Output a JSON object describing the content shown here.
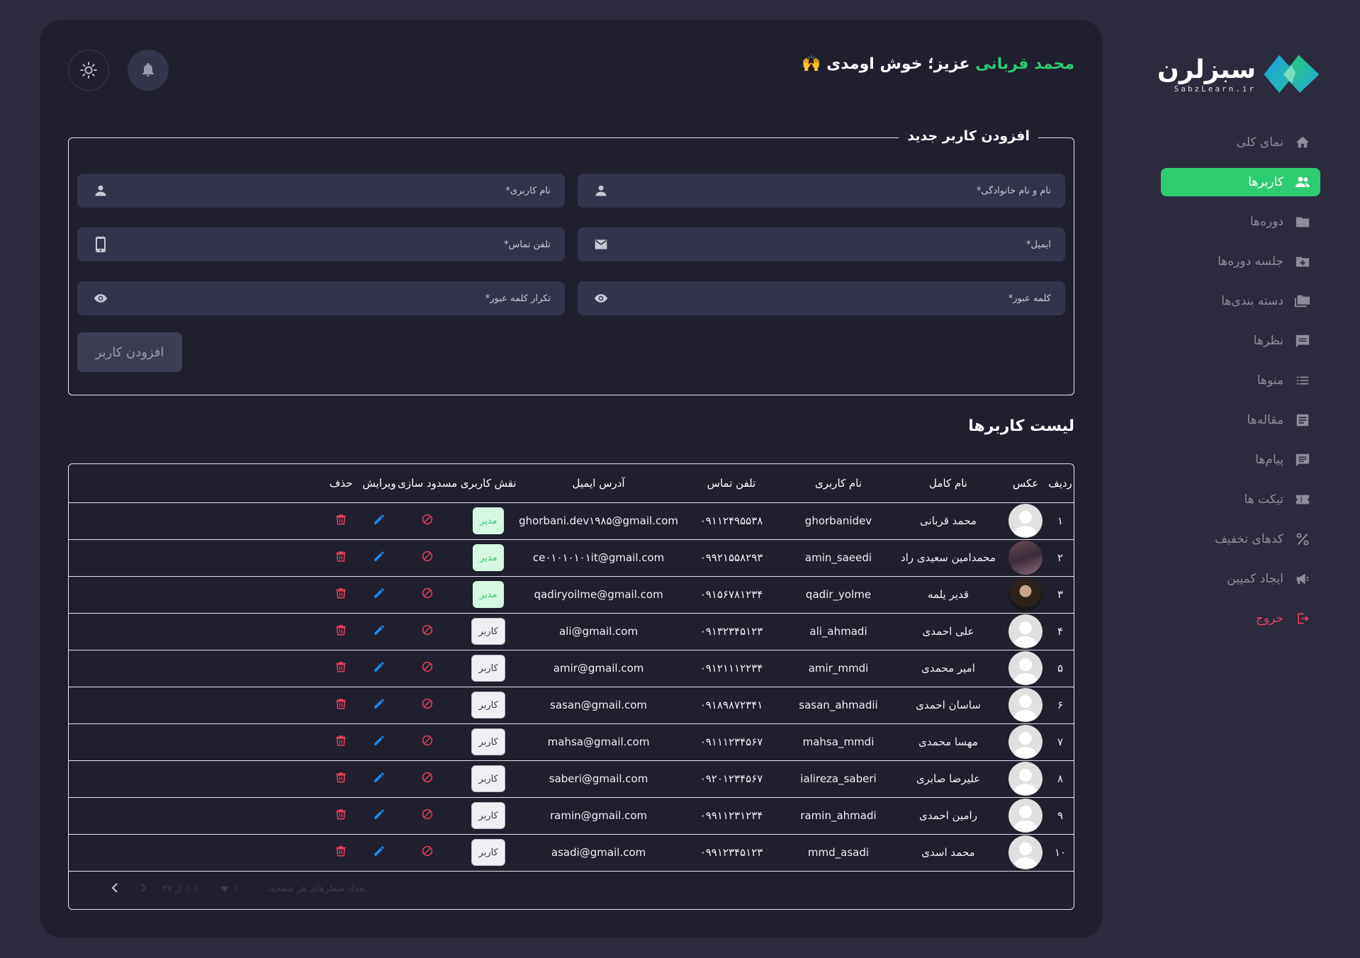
{
  "brand": {
    "name": "سبزلرن",
    "domain": "SabzLearn.ir"
  },
  "sidebar": {
    "items": [
      {
        "label": "نمای کلی",
        "icon": "home-icon",
        "active": false
      },
      {
        "label": "کاربرها",
        "icon": "users-icon",
        "active": true
      },
      {
        "label": "دوره‌ها",
        "icon": "folder-icon",
        "active": false
      },
      {
        "label": "جلسه دوره‌ها",
        "icon": "folder-plus-icon",
        "active": false
      },
      {
        "label": "دسته بندی‌ها",
        "icon": "folders-icon",
        "active": false
      },
      {
        "label": "نظرها",
        "icon": "comment-icon",
        "active": false
      },
      {
        "label": "منوها",
        "icon": "list-icon",
        "active": false
      },
      {
        "label": "مقاله‌ها",
        "icon": "article-icon",
        "active": false
      },
      {
        "label": "پیام‌ها",
        "icon": "message-icon",
        "active": false
      },
      {
        "label": "تیکت ها",
        "icon": "ticket-icon",
        "active": false
      },
      {
        "label": "کدهای تخفیف",
        "icon": "percent-icon",
        "active": false
      },
      {
        "label": "ایجاد کمپین",
        "icon": "megaphone-icon",
        "active": false
      },
      {
        "label": "خروج",
        "icon": "logout-icon",
        "active": false
      }
    ]
  },
  "header": {
    "name": "محمد قربانی",
    "greeting_rest": "عزیز؛ خوش اومدی 🙌"
  },
  "form": {
    "legend": "افزودن کاربر جدید",
    "fullname_placeholder": "نام و نام خانوادگی*",
    "username_placeholder": "نام کاربری*",
    "email_placeholder": "ایمیل*",
    "phone_placeholder": "تلفن تماس*",
    "password_placeholder": "کلمه عبور*",
    "confirm_placeholder": "تکرار کلمه عبور*",
    "submit_label": "افزودن کاربر"
  },
  "users_table": {
    "title": "لیست کاربرها",
    "columns": [
      "ردیف",
      "عکس",
      "نام کامل",
      "نام کاربری",
      "تلفن تماس",
      "آدرس ایمیل",
      "نقش کاربری",
      "مسدود سازی",
      "ویرایش",
      "حذف"
    ],
    "rows": [
      {
        "idx": "۱",
        "avatar": "default",
        "name": "محمد قربانی",
        "username": "ghorbanidev",
        "phone": "۰۹۱۱۲۴۹۵۵۳۸",
        "email": "ghorbani.dev۱۹۸۵@gmail.com",
        "role": "مدیر",
        "role_type": "admin"
      },
      {
        "idx": "۲",
        "avatar": "photo1",
        "name": "محمدامین سعیدی راد",
        "username": "amin_saeedi",
        "phone": "۰۹۹۲۱۵۵۸۲۹۳",
        "email": "ce۰۱۰۱۰۱۰۱it@gmail.com",
        "role": "مدیر",
        "role_type": "admin"
      },
      {
        "idx": "۳",
        "avatar": "photo2",
        "name": "قدیر یلمه",
        "username": "qadir_yolme",
        "phone": "۰۹۱۵۶۷۸۱۲۳۴",
        "email": "qadiryoilme@gmail.com",
        "role": "مدیر",
        "role_type": "admin"
      },
      {
        "idx": "۴",
        "avatar": "default",
        "name": "علی احمدی",
        "username": "ali_ahmadi",
        "phone": "۰۹۱۳۲۳۴۵۱۲۳",
        "email": "ali@gmail.com",
        "role": "کاربر",
        "role_type": "user"
      },
      {
        "idx": "۵",
        "avatar": "default",
        "name": "امیر محمدی",
        "username": "amir_mmdi",
        "phone": "۰۹۱۲۱۱۱۲۲۳۴",
        "email": "amir@gmail.com",
        "role": "کاربر",
        "role_type": "user"
      },
      {
        "idx": "۶",
        "avatar": "default",
        "name": "ساسان احمدی",
        "username": "sasan_ahmadii",
        "phone": "۰۹۱۸۹۸۷۲۳۴۱",
        "email": "sasan@gmail.com",
        "role": "کاربر",
        "role_type": "user"
      },
      {
        "idx": "۷",
        "avatar": "default",
        "name": "مهسا محمدی",
        "username": "mahsa_mmdi",
        "phone": "۰۹۱۱۱۲۳۴۵۶۷",
        "email": "mahsa@gmail.com",
        "role": "کاربر",
        "role_type": "user"
      },
      {
        "idx": "۸",
        "avatar": "default",
        "name": "علیرضا صابری",
        "username": "ialireza_saberi",
        "phone": "۰۹۲۰۱۲۳۴۵۶۷",
        "email": "saberi@gmail.com",
        "role": "کاربر",
        "role_type": "user"
      },
      {
        "idx": "۹",
        "avatar": "default",
        "name": "رامین احمدی",
        "username": "ramin_ahmadi",
        "phone": "۰۹۹۱۱۲۳۱۲۳۴",
        "email": "ramin@gmail.com",
        "role": "کاربر",
        "role_type": "user"
      },
      {
        "idx": "۱۰",
        "avatar": "default",
        "name": "محمد اسدی",
        "username": "mmd_asadi",
        "phone": "۰۹۹۱۲۳۴۵۱۲۳",
        "email": "asadi@gmail.com",
        "role": "کاربر",
        "role_type": "user"
      }
    ]
  },
  "pagination": {
    "rows_label": "تعداد سطرهای هر صفحه:",
    "rows_value": "۱۰",
    "range": "۱-۱۰ از ۲۷"
  },
  "colors": {
    "accent": "#2ecc71",
    "background": "#2b2b3d",
    "panel": "#1f1f2e",
    "input": "#33344b",
    "danger": "#e8405b",
    "edit": "#1e88e5"
  }
}
